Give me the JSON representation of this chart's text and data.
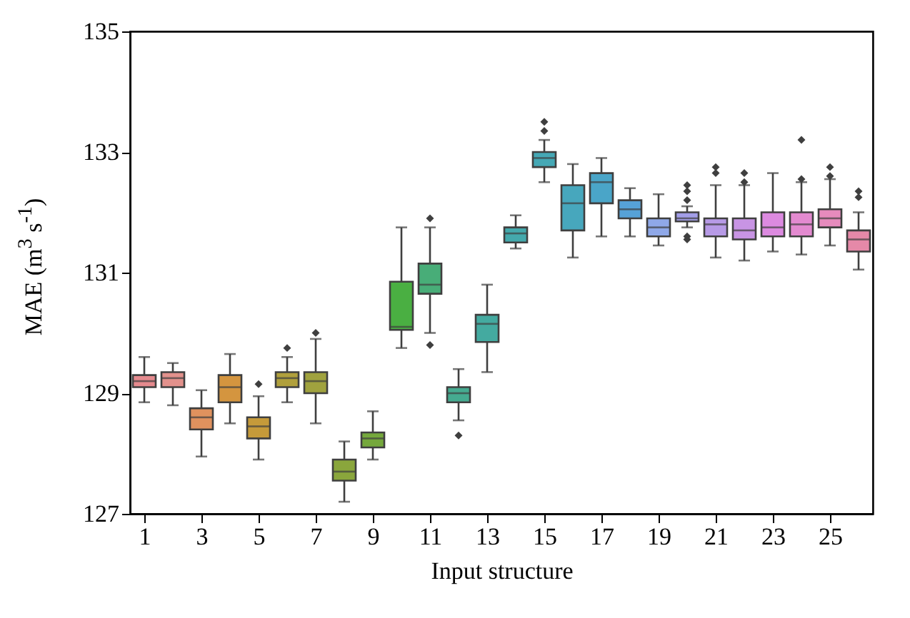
{
  "chart_data": {
    "type": "box",
    "xlabel": "Input structure",
    "ylabel": "MAE (m$^{3}$ s$^{-1}$)",
    "x": [
      1,
      2,
      3,
      4,
      5,
      6,
      7,
      8,
      9,
      10,
      11,
      12,
      13,
      14,
      15,
      16,
      17,
      18,
      19,
      20,
      21,
      22,
      23,
      24,
      25,
      26
    ],
    "xlim": [
      0.5,
      26.5
    ],
    "xticks": [
      1,
      3,
      5,
      7,
      9,
      11,
      13,
      15,
      17,
      19,
      21,
      23,
      25
    ],
    "colors": [
      "#e58a8e",
      "#e2918c",
      "#e0925e",
      "#d4953f",
      "#c59a3a",
      "#b0a03c",
      "#a0a23e",
      "#8aa63c",
      "#75a83c",
      "#4aaf42",
      "#48ad78",
      "#45ab90",
      "#44aaa0",
      "#44a9ac",
      "#45a8b5",
      "#47a7bd",
      "#4aa5c8",
      "#56a2d8",
      "#8fa8e8",
      "#a39ee8",
      "#b79ae6",
      "#c894e4",
      "#dc8ae0",
      "#e38ad0",
      "#e68bbd",
      "#e589a8"
    ],
    "boxes": [
      {
        "low": 128.85,
        "q1": 129.1,
        "median": 129.2,
        "q3": 129.3,
        "high": 129.6
      },
      {
        "low": 128.8,
        "q1": 129.1,
        "median": 129.25,
        "q3": 129.35,
        "high": 129.5
      },
      {
        "low": 127.95,
        "q1": 128.4,
        "median": 128.6,
        "q3": 128.75,
        "high": 129.05
      },
      {
        "low": 128.5,
        "q1": 128.85,
        "median": 129.1,
        "q3": 129.3,
        "high": 129.65
      },
      {
        "low": 127.9,
        "q1": 128.25,
        "median": 128.45,
        "q3": 128.6,
        "high": 128.95,
        "outliers": [
          129.15
        ]
      },
      {
        "low": 128.85,
        "q1": 129.1,
        "median": 129.25,
        "q3": 129.35,
        "high": 129.6,
        "outliers": [
          129.75
        ]
      },
      {
        "low": 128.5,
        "q1": 129.0,
        "median": 129.2,
        "q3": 129.35,
        "high": 129.9,
        "outliers": [
          130.0
        ]
      },
      {
        "low": 127.2,
        "q1": 127.55,
        "median": 127.7,
        "q3": 127.9,
        "high": 128.2
      },
      {
        "low": 127.9,
        "q1": 128.1,
        "median": 128.25,
        "q3": 128.35,
        "high": 128.7
      },
      {
        "low": 129.75,
        "q1": 130.05,
        "median": 130.1,
        "q3": 130.85,
        "high": 131.75
      },
      {
        "low": 130.0,
        "q1": 130.65,
        "median": 130.8,
        "q3": 131.15,
        "high": 131.75,
        "outliers": [
          131.9,
          129.8
        ]
      },
      {
        "low": 128.55,
        "q1": 128.85,
        "median": 129.0,
        "q3": 129.1,
        "high": 129.4,
        "outliers": [
          128.3
        ]
      },
      {
        "low": 129.35,
        "q1": 129.85,
        "median": 130.15,
        "q3": 130.3,
        "high": 130.8
      },
      {
        "low": 131.4,
        "q1": 131.5,
        "median": 131.65,
        "q3": 131.75,
        "high": 131.95
      },
      {
        "low": 132.5,
        "q1": 132.75,
        "median": 132.9,
        "q3": 133.0,
        "high": 133.2,
        "outliers": [
          133.35,
          133.5
        ]
      },
      {
        "low": 131.25,
        "q1": 131.7,
        "median": 132.15,
        "q3": 132.45,
        "high": 132.8
      },
      {
        "low": 131.6,
        "q1": 132.15,
        "median": 132.5,
        "q3": 132.65,
        "high": 132.9
      },
      {
        "low": 131.6,
        "q1": 131.9,
        "median": 132.05,
        "q3": 132.2,
        "high": 132.4
      },
      {
        "low": 131.45,
        "q1": 131.6,
        "median": 131.75,
        "q3": 131.9,
        "high": 132.3
      },
      {
        "low": 131.75,
        "q1": 131.85,
        "median": 131.9,
        "q3": 132.0,
        "high": 132.1,
        "outliers": [
          132.2,
          132.35,
          132.45,
          131.6,
          131.55
        ]
      },
      {
        "low": 131.25,
        "q1": 131.6,
        "median": 131.8,
        "q3": 131.9,
        "high": 132.45,
        "outliers": [
          132.65,
          132.75
        ]
      },
      {
        "low": 131.2,
        "q1": 131.55,
        "median": 131.7,
        "q3": 131.9,
        "high": 132.45,
        "outliers": [
          132.5,
          132.65
        ]
      },
      {
        "low": 131.35,
        "q1": 131.6,
        "median": 131.75,
        "q3": 132.0,
        "high": 132.65
      },
      {
        "low": 131.3,
        "q1": 131.6,
        "median": 131.8,
        "q3": 132.0,
        "high": 132.5,
        "outliers": [
          132.55,
          133.2
        ]
      },
      {
        "low": 131.45,
        "q1": 131.75,
        "median": 131.9,
        "q3": 132.05,
        "high": 132.55,
        "outliers": [
          132.6,
          132.75
        ]
      },
      {
        "low": 131.05,
        "q1": 131.35,
        "median": 131.55,
        "q3": 131.7,
        "high": 132.0,
        "outliers": [
          132.25,
          132.35
        ]
      }
    ],
    "ylim": [
      127,
      135
    ],
    "yticks": [
      127,
      129,
      131,
      133,
      135
    ],
    "grid": false
  }
}
